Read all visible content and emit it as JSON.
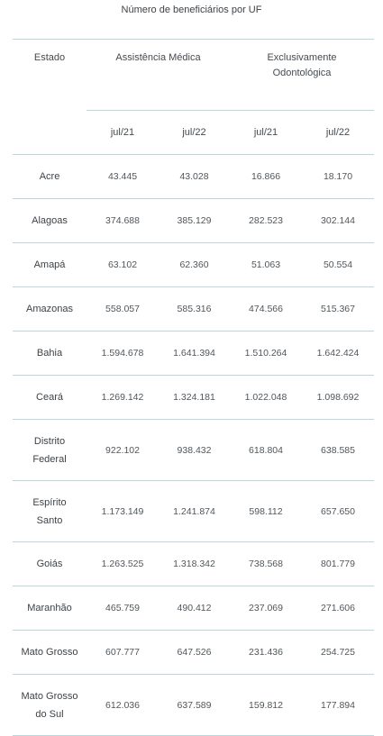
{
  "title": "Número de beneficiários por UF",
  "headers": {
    "estado": "Estado",
    "assistencia": "Assistência Médica",
    "odontologica": "Exclusivamente Odontológica",
    "periods": [
      "jul/21",
      "jul/22",
      "jul/21",
      "jul/22"
    ]
  },
  "rows": [
    {
      "estado": "Acre",
      "values": [
        "43.445",
        "43.028",
        "16.866",
        "18.170"
      ]
    },
    {
      "estado": "Alagoas",
      "values": [
        "374.688",
        "385.129",
        "282.523",
        "302.144"
      ]
    },
    {
      "estado": "Amapá",
      "values": [
        "63.102",
        "62.360",
        "51.063",
        "50.554"
      ]
    },
    {
      "estado": "Amazonas",
      "values": [
        "558.057",
        "585.316",
        "474.566",
        "515.367"
      ]
    },
    {
      "estado": "Bahia",
      "values": [
        "1.594.678",
        "1.641.394",
        "1.510.264",
        "1.642.424"
      ]
    },
    {
      "estado": "Ceará",
      "values": [
        "1.269.142",
        "1.324.181",
        "1.022.048",
        "1.098.692"
      ]
    },
    {
      "estado": "Distrito Federal",
      "values": [
        "922.102",
        "938.432",
        "618.804",
        "638.585"
      ]
    },
    {
      "estado": "Espírito Santo",
      "values": [
        "1.173.149",
        "1.241.874",
        "598.112",
        "657.650"
      ]
    },
    {
      "estado": "Goiás",
      "values": [
        "1.263.525",
        "1.318.342",
        "738.568",
        "801.779"
      ]
    },
    {
      "estado": "Maranhão",
      "values": [
        "465.759",
        "490.412",
        "237.069",
        "271.606"
      ]
    },
    {
      "estado": "Mato Grosso",
      "values": [
        "607.777",
        "647.526",
        "231.436",
        "254.725"
      ]
    },
    {
      "estado": "Mato Grosso do Sul",
      "values": [
        "612.036",
        "637.589",
        "159.812",
        "177.894"
      ]
    }
  ]
}
